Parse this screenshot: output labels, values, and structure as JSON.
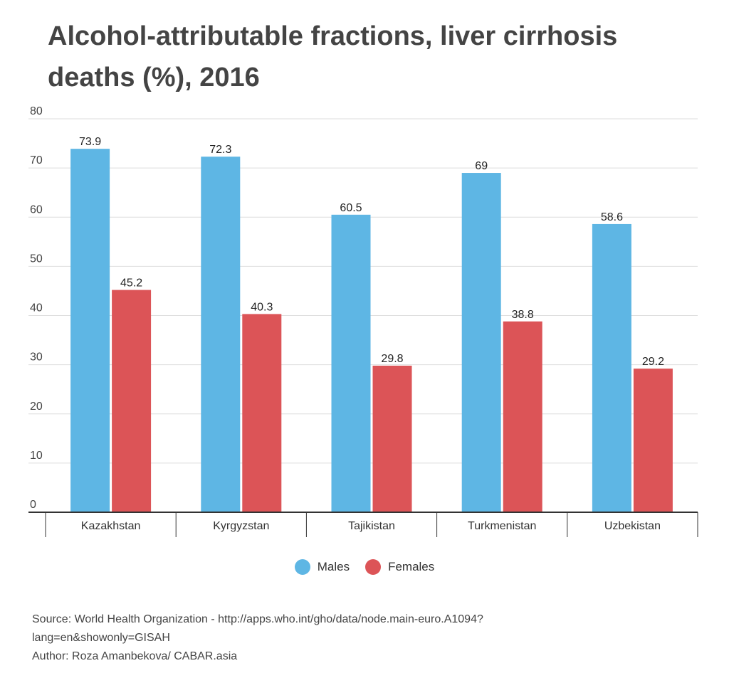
{
  "chart_data": {
    "type": "bar",
    "title": "Alcohol-attributable fractions, liver cirrhosis deaths (%), 2016",
    "categories": [
      "Kazakhstan",
      "Kyrgyzstan",
      "Tajikistan",
      "Turkmenistan",
      "Uzbekistan"
    ],
    "series": [
      {
        "name": "Males",
        "values": [
          73.9,
          72.3,
          60.5,
          69,
          58.6
        ],
        "color": "#5eb6e4"
      },
      {
        "name": "Females",
        "values": [
          45.2,
          40.3,
          29.8,
          38.8,
          29.2
        ],
        "color": "#dc5457"
      }
    ],
    "data_labels": [
      [
        "73.9",
        "72.3",
        "60.5",
        "69",
        "58.6"
      ],
      [
        "45.2",
        "40.3",
        "29.8",
        "38.8",
        "29.2"
      ]
    ],
    "ylim": [
      0,
      80
    ],
    "yticks": [
      0,
      10,
      20,
      30,
      40,
      50,
      60,
      70,
      80
    ],
    "grid": true,
    "legend_position": "bottom"
  },
  "source": {
    "line1": "Source: World Health Organization - http://apps.who.int/gho/data/node.main-euro.A1094?",
    "line2": "lang=en&showonly=GISAH",
    "author": "Author: Roza Amanbekova/ CABAR.asia"
  }
}
